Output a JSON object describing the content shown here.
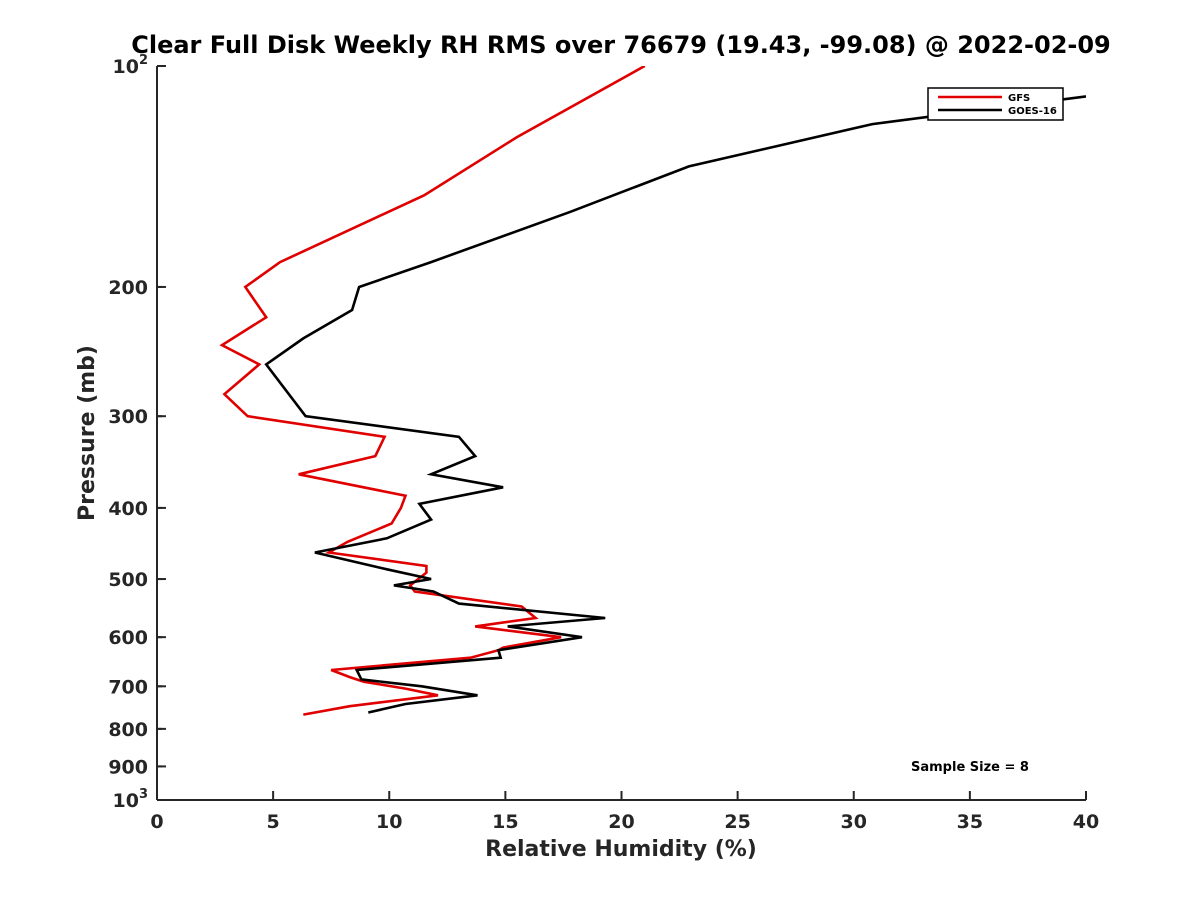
{
  "chart_data": {
    "type": "line",
    "title": "Clear Full Disk Weekly RH RMS over 76679 (19.43, -99.08) @ 2022-02-09",
    "xlabel": "Relative Humidity (%)",
    "ylabel": "Pressure (mb)",
    "xlim": [
      0,
      40
    ],
    "ylim": [
      100,
      1000
    ],
    "y_scale": "log",
    "y_reversed": true,
    "x_ticks": [
      0,
      5,
      10,
      15,
      20,
      25,
      30,
      35,
      40
    ],
    "y_ticks": [
      {
        "value": 100,
        "label": "10",
        "sup": "2"
      },
      {
        "value": 200,
        "label": "200",
        "sup": ""
      },
      {
        "value": 300,
        "label": "300",
        "sup": ""
      },
      {
        "value": 400,
        "label": "400",
        "sup": ""
      },
      {
        "value": 500,
        "label": "500",
        "sup": ""
      },
      {
        "value": 600,
        "label": "600",
        "sup": ""
      },
      {
        "value": 700,
        "label": "700",
        "sup": ""
      },
      {
        "value": 800,
        "label": "800",
        "sup": ""
      },
      {
        "value": 900,
        "label": "900",
        "sup": ""
      },
      {
        "value": 1000,
        "label": "10",
        "sup": "3"
      }
    ],
    "grid": false,
    "legend_position": "top-right",
    "series": [
      {
        "name": "GFS",
        "color": "#e00000",
        "points": [
          [
            21.0,
            100
          ],
          [
            15.5,
            125
          ],
          [
            11.5,
            150
          ],
          [
            5.3,
            185
          ],
          [
            3.8,
            200
          ],
          [
            4.7,
            220
          ],
          [
            2.8,
            240
          ],
          [
            4.4,
            255
          ],
          [
            2.9,
            280
          ],
          [
            3.9,
            300
          ],
          [
            9.8,
            320
          ],
          [
            9.4,
            340
          ],
          [
            6.1,
            360
          ],
          [
            10.7,
            385
          ],
          [
            10.5,
            400
          ],
          [
            10.1,
            420
          ],
          [
            8.2,
            445
          ],
          [
            7.4,
            460
          ],
          [
            11.6,
            480
          ],
          [
            11.6,
            490
          ],
          [
            10.9,
            510
          ],
          [
            11.1,
            520
          ],
          [
            15.7,
            545
          ],
          [
            16.3,
            565
          ],
          [
            13.7,
            580
          ],
          [
            17.4,
            600
          ],
          [
            14.9,
            620
          ],
          [
            14.7,
            625
          ],
          [
            13.5,
            640
          ],
          [
            7.5,
            665
          ],
          [
            8.3,
            680
          ],
          [
            8.9,
            690
          ],
          [
            10.7,
            705
          ],
          [
            12.1,
            720
          ],
          [
            8.3,
            745
          ],
          [
            6.3,
            765
          ]
        ]
      },
      {
        "name": "GOES-16",
        "color": "#000000",
        "points": [
          [
            40.0,
            110
          ],
          [
            30.8,
            120
          ],
          [
            22.9,
            137
          ],
          [
            17.8,
            158
          ],
          [
            11.8,
            185
          ],
          [
            8.7,
            200
          ],
          [
            8.4,
            215
          ],
          [
            6.3,
            235
          ],
          [
            4.7,
            255
          ],
          [
            6.4,
            300
          ],
          [
            13.0,
            320
          ],
          [
            13.7,
            340
          ],
          [
            11.8,
            360
          ],
          [
            14.9,
            375
          ],
          [
            11.3,
            395
          ],
          [
            11.8,
            415
          ],
          [
            9.9,
            440
          ],
          [
            6.8,
            460
          ],
          [
            9.9,
            485
          ],
          [
            11.8,
            500
          ],
          [
            10.2,
            510
          ],
          [
            11.9,
            520
          ],
          [
            13.0,
            540
          ],
          [
            19.3,
            565
          ],
          [
            15.1,
            580
          ],
          [
            18.3,
            600
          ],
          [
            14.7,
            625
          ],
          [
            14.8,
            640
          ],
          [
            8.6,
            665
          ],
          [
            8.8,
            685
          ],
          [
            11.4,
            700
          ],
          [
            13.8,
            720
          ],
          [
            10.7,
            740
          ],
          [
            9.1,
            760
          ]
        ]
      }
    ],
    "annotations": [
      {
        "text": "Sample Size = 8",
        "x": 33.8,
        "y": 900
      }
    ]
  }
}
